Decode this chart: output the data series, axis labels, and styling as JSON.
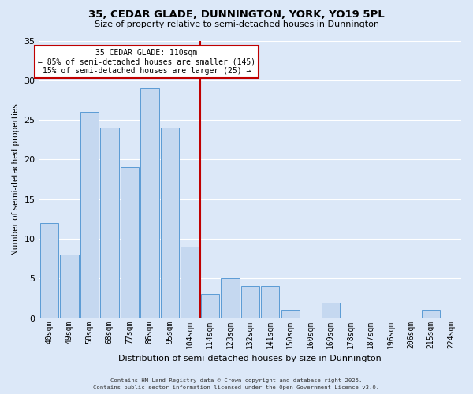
{
  "title": "35, CEDAR GLADE, DUNNINGTON, YORK, YO19 5PL",
  "subtitle": "Size of property relative to semi-detached houses in Dunnington",
  "xlabel": "Distribution of semi-detached houses by size in Dunnington",
  "ylabel": "Number of semi-detached properties",
  "bar_labels": [
    "40sqm",
    "49sqm",
    "58sqm",
    "68sqm",
    "77sqm",
    "86sqm",
    "95sqm",
    "104sqm",
    "114sqm",
    "123sqm",
    "132sqm",
    "141sqm",
    "150sqm",
    "160sqm",
    "169sqm",
    "178sqm",
    "187sqm",
    "196sqm",
    "206sqm",
    "215sqm",
    "224sqm"
  ],
  "bar_values": [
    12,
    8,
    26,
    24,
    19,
    29,
    24,
    9,
    3,
    5,
    4,
    4,
    1,
    0,
    2,
    0,
    0,
    0,
    0,
    1,
    0
  ],
  "bar_color": "#c5d8f0",
  "bar_edge_color": "#5b9bd5",
  "background_color": "#dce8f8",
  "plot_bg_color": "#dce8f8",
  "grid_color": "#ffffff",
  "vline_x": 7.5,
  "vline_color": "#c00000",
  "annotation_title": "35 CEDAR GLADE: 110sqm",
  "annotation_line1": "← 85% of semi-detached houses are smaller (145)",
  "annotation_line2": "15% of semi-detached houses are larger (25) →",
  "annotation_box_color": "#ffffff",
  "annotation_box_edge": "#c00000",
  "footer1": "Contains HM Land Registry data © Crown copyright and database right 2025.",
  "footer2": "Contains public sector information licensed under the Open Government Licence v3.0.",
  "ylim": [
    0,
    35
  ],
  "yticks": [
    0,
    5,
    10,
    15,
    20,
    25,
    30,
    35
  ]
}
